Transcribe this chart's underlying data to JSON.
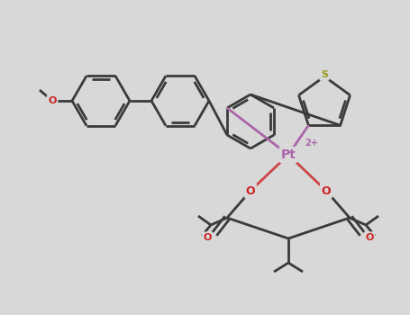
{
  "bg_color": "#d8d8d8",
  "bond_color": "#3a3a3a",
  "bond_lw": 2.0,
  "atom_bg": "#d8d8d8",
  "colors": {
    "O": "#cc2222",
    "N": "#4444bb",
    "S": "#999922",
    "Pt": "#aa66aa",
    "C": "#3a3a3a",
    "Pt_bond": "#aa66aa",
    "O_bond": "#cc4444"
  },
  "figsize": [
    4.55,
    3.5
  ],
  "dpi": 100
}
